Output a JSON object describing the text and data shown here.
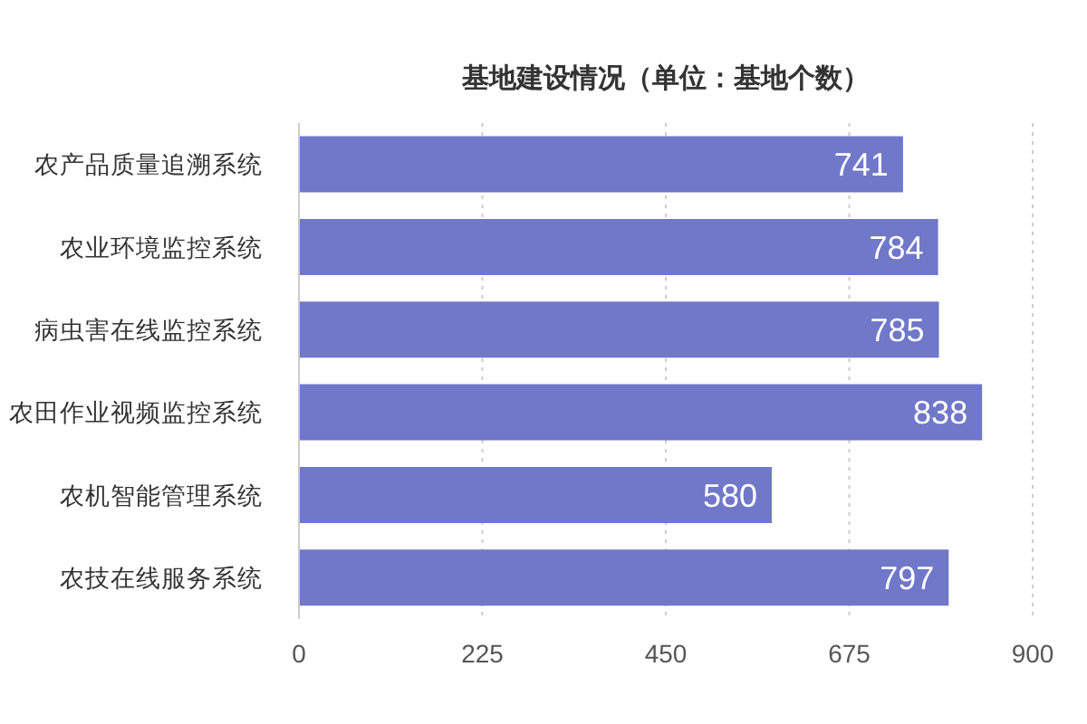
{
  "chart_data": {
    "type": "bar",
    "orientation": "horizontal",
    "title": "基地建设情况（单位：基地个数）",
    "categories": [
      "农产品质量追溯系统",
      "农业环境监控系统",
      "病虫害在线监控系统",
      "农田作业视频监控系统",
      "农机智能管理系统",
      "农技在线服务系统"
    ],
    "values": [
      741,
      784,
      785,
      838,
      580,
      797
    ],
    "color": "#6f78c9",
    "xlim": [
      0,
      900
    ],
    "xticks": [
      0,
      225,
      450,
      675,
      900
    ],
    "grid": "x",
    "data_labels": true
  }
}
